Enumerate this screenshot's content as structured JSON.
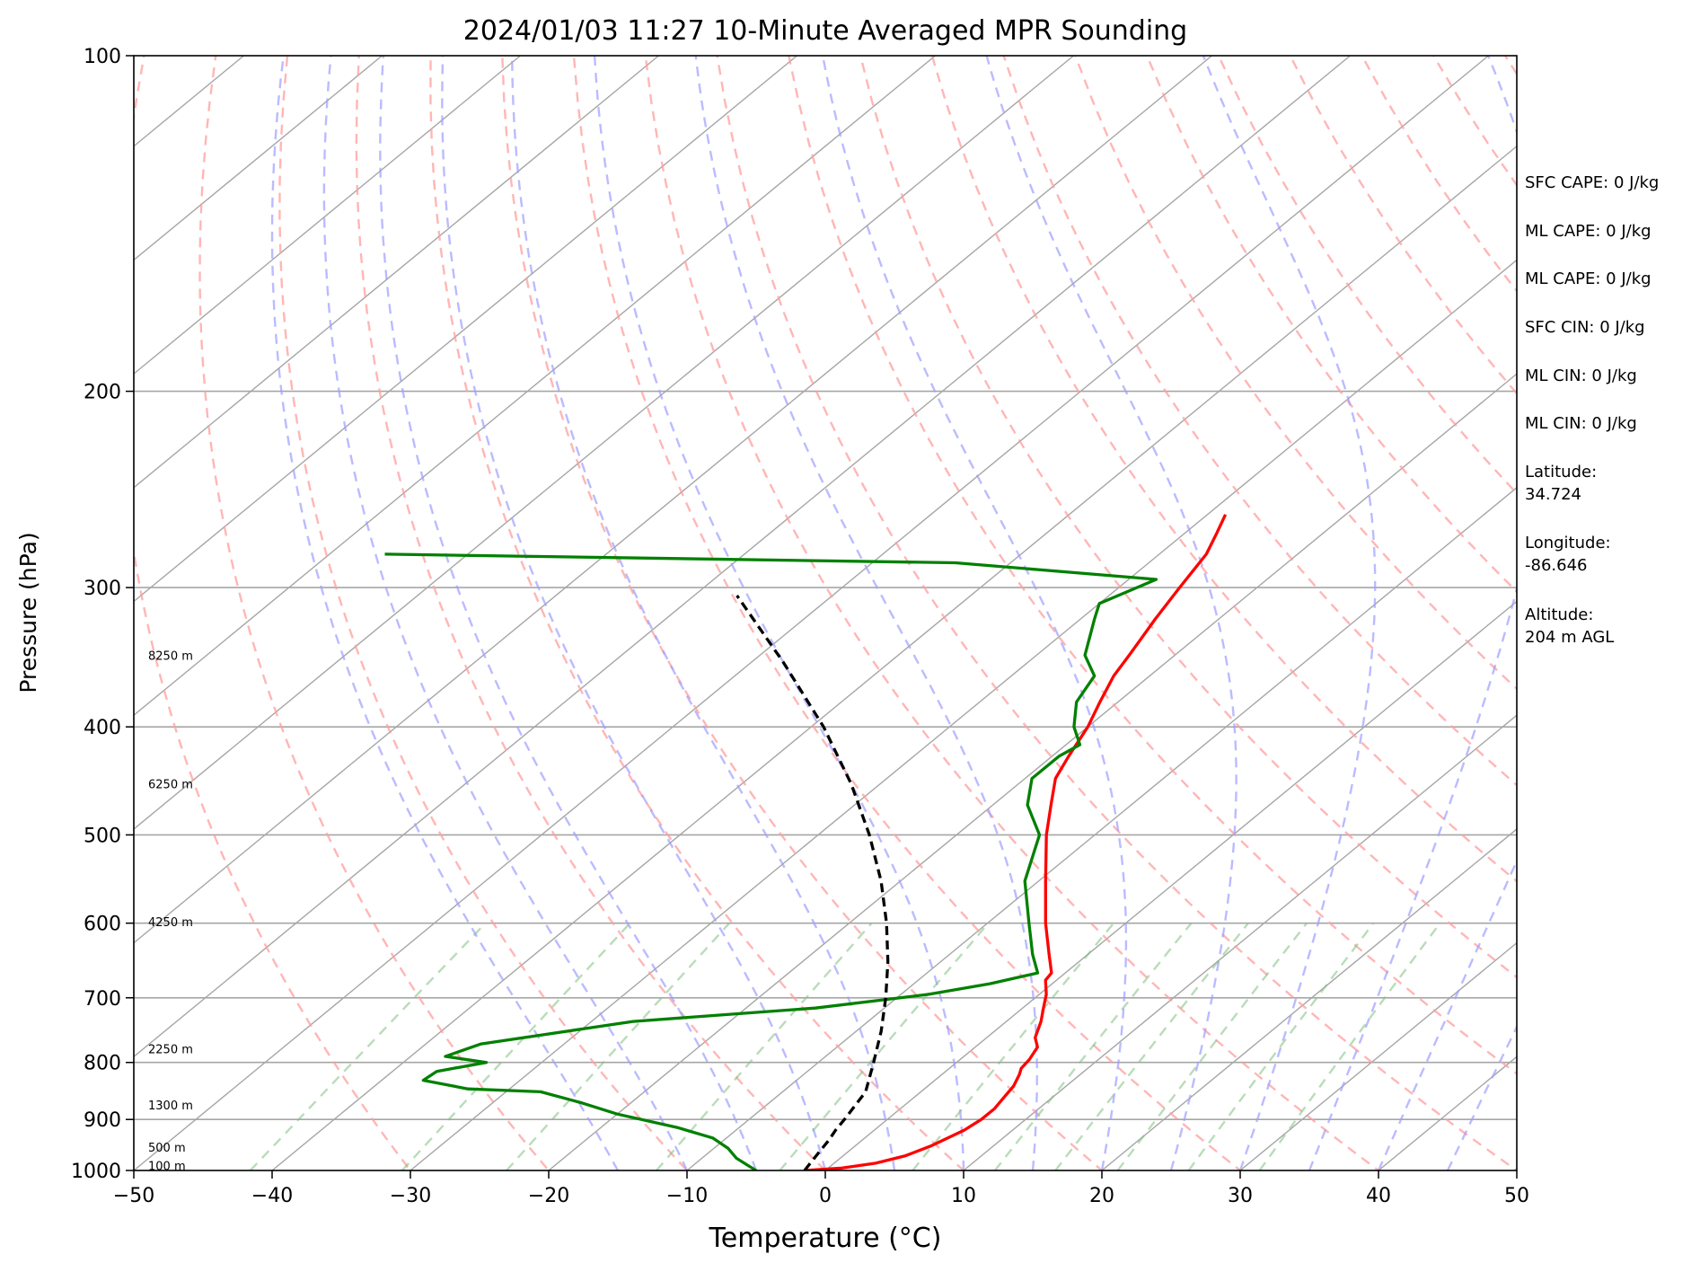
{
  "chart_data": {
    "type": "line",
    "title": "2024/01/03 11:27 10-Minute Averaged MPR Sounding",
    "xlabel": "Temperature (°C)",
    "ylabel": "Pressure (hPa)",
    "xlim": [
      -50,
      50
    ],
    "ylim": [
      1000,
      100
    ],
    "y_scale": "log",
    "x_ticks": [
      "−50",
      "−40",
      "−30",
      "−20",
      "−10",
      "0",
      "10",
      "20",
      "30",
      "40",
      "50"
    ],
    "y_ticks": [
      "100",
      "200",
      "300",
      "400",
      "500",
      "600",
      "700",
      "800",
      "900",
      "1000"
    ],
    "grid": "horizontal isobars at labeled pressures",
    "series": [
      {
        "role": "temperature",
        "color": "#ff0000",
        "pressure": [
          1000,
          995,
          985,
          970,
          950,
          920,
          900,
          880,
          860,
          840,
          820,
          810,
          795,
          775,
          760,
          735,
          715,
          695,
          675,
          665,
          640,
          600,
          550,
          500,
          470,
          445,
          425,
          400,
          380,
          360,
          345,
          320,
          300,
          280,
          268,
          258
        ],
        "temp": [
          -1.5,
          1.0,
          3.0,
          4.5,
          5.5,
          6.5,
          6.8,
          6.8,
          6.5,
          6.2,
          5.6,
          5.2,
          5.0,
          4.5,
          3.5,
          2.5,
          1.5,
          0.5,
          -0.8,
          -1.0,
          -2.8,
          -5.8,
          -9.5,
          -13.5,
          -15.8,
          -17.8,
          -18.8,
          -20.0,
          -21.3,
          -22.6,
          -23.3,
          -24.6,
          -25.6,
          -26.6,
          -27.7,
          -28.7
        ]
      },
      {
        "role": "dewpoint",
        "color": "#008000",
        "pressure": [
          1000,
          990,
          975,
          955,
          935,
          915,
          890,
          870,
          850,
          845,
          830,
          815,
          800,
          790,
          770,
          735,
          715,
          695,
          680,
          665,
          640,
          600,
          550,
          500,
          470,
          445,
          425,
          415,
          400,
          380,
          360,
          345,
          320,
          310,
          295,
          285,
          280
        ],
        "temp": [
          -5.0,
          -6.0,
          -7.5,
          -9.0,
          -11.0,
          -14.5,
          -20.0,
          -23.5,
          -27.5,
          -33.0,
          -37.0,
          -36.8,
          -34.0,
          -37.5,
          -36.0,
          -27.0,
          -15.0,
          -8.0,
          -4.5,
          -2.0,
          -4.0,
          -7.0,
          -11.0,
          -14.0,
          -17.5,
          -19.5,
          -19.5,
          -19.0,
          -21.0,
          -23.0,
          -24.0,
          -26.5,
          -29.0,
          -30.0,
          -28.0,
          -44.0,
          -86.0
        ]
      },
      {
        "role": "parcel",
        "color": "#000000",
        "pressure": [
          1000,
          980,
          960,
          940,
          920,
          900,
          850,
          800,
          750,
          700,
          650,
          600,
          550,
          500,
          450,
          400,
          350,
          305
        ],
        "temp": [
          -1.5,
          -1.8,
          -2.1,
          -2.4,
          -2.8,
          -3.1,
          -4.0,
          -6.0,
          -8.2,
          -10.8,
          -13.8,
          -17.3,
          -21.4,
          -26.3,
          -32.1,
          -39.1,
          -47.7,
          -56.9
        ]
      }
    ],
    "height_labels": [
      {
        "pressure": 345,
        "text": "8250 m"
      },
      {
        "pressure": 450,
        "text": "6250 m"
      },
      {
        "pressure": 598,
        "text": "4250 m"
      },
      {
        "pressure": 778,
        "text": "2250 m"
      },
      {
        "pressure": 873,
        "text": "1300 m"
      },
      {
        "pressure": 953,
        "text": "500 m"
      },
      {
        "pressure": 990,
        "text": "100 m"
      }
    ],
    "indices": [
      "SFC CAPE: 0 J/kg",
      "ML CAPE: 0 J/kg",
      "ML CAPE: 0 J/kg",
      "SFC CIN: 0 J/kg",
      "ML CIN: 0 J/kg",
      "ML CIN: 0 J/kg"
    ],
    "station": {
      "latitude_label": "Latitude:",
      "latitude": "34.724",
      "longitude_label": "Longitude:",
      "longitude": "-86.646",
      "altitude_label": "Altitude:",
      "altitude": "204 m AGL"
    },
    "colors": {
      "isotherm": "#a6a6a6",
      "dry_adiabat": "#ff9e9e",
      "moist_adiabat": "#9e9eff",
      "mixing_ratio": "#7fbf7f"
    }
  }
}
